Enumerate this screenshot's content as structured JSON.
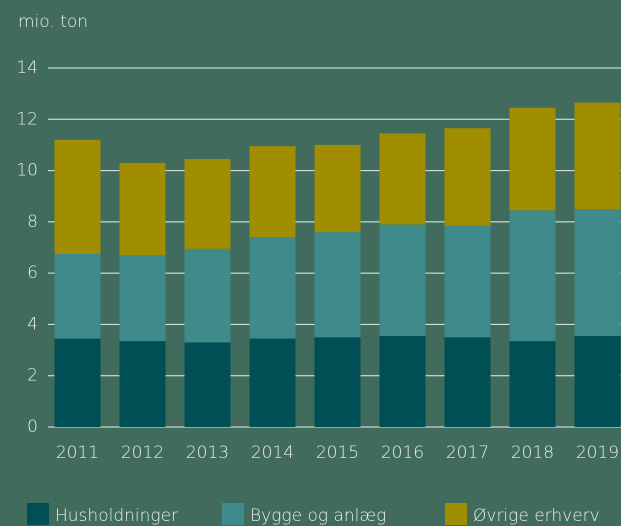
{
  "chart_data": {
    "type": "stacked_bar",
    "y_label": "mio. ton",
    "categories": [
      "2011",
      "2012",
      "2013",
      "2014",
      "2015",
      "2016",
      "2017",
      "2018",
      "2019"
    ],
    "series": [
      {
        "name": "Husholdninger",
        "color": "#004f55",
        "values": [
          3.45,
          3.35,
          3.3,
          3.45,
          3.5,
          3.55,
          3.5,
          3.35,
          3.55
        ]
      },
      {
        "name": "Bygge og anlæg",
        "color": "#3f8a8a",
        "values": [
          3.3,
          3.35,
          3.65,
          3.95,
          4.1,
          4.35,
          4.35,
          5.1,
          4.95
        ]
      },
      {
        "name": "Øvrige erhverv",
        "color": "#a08e00",
        "values": [
          4.45,
          3.6,
          3.5,
          3.55,
          3.4,
          3.55,
          3.8,
          4.0,
          4.15
        ]
      }
    ],
    "ylim": [
      0,
      14
    ],
    "yticks": [
      0,
      2,
      4,
      6,
      8,
      10,
      12,
      14
    ],
    "grid": true
  }
}
